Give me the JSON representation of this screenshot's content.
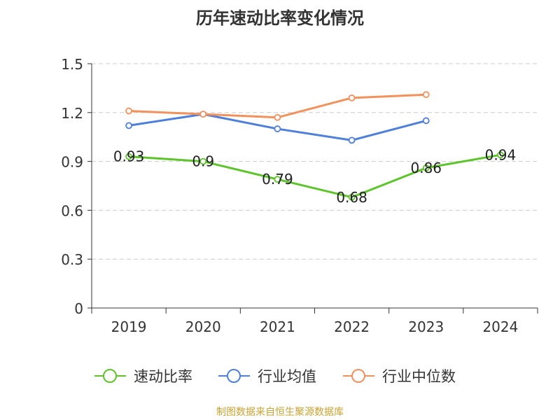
{
  "chart_data": {
    "type": "line",
    "title": "历年速动比率变化情况",
    "categories": [
      "2019",
      "2020",
      "2021",
      "2022",
      "2023",
      "2024"
    ],
    "y_ticks": [
      "0",
      "0.3",
      "0.6",
      "0.9",
      "1.2",
      "1.5"
    ],
    "ylim": [
      0,
      1.5
    ],
    "grid": true,
    "legend_position": "bottom",
    "series": [
      {
        "name": "速动比率",
        "color": "#5ec42b",
        "show_labels": true,
        "values": [
          0.93,
          0.9,
          0.79,
          0.68,
          0.86,
          0.94
        ],
        "labels": [
          "0.93",
          "0.9",
          "0.79",
          "0.68",
          "0.86",
          "0.94"
        ]
      },
      {
        "name": "行业均值",
        "color": "#4e7fda",
        "show_labels": false,
        "values": [
          1.12,
          1.19,
          1.1,
          1.03,
          1.15,
          null
        ]
      },
      {
        "name": "行业中位数",
        "color": "#f2915c",
        "show_labels": false,
        "values": [
          1.21,
          1.19,
          1.17,
          1.29,
          1.31,
          null
        ]
      }
    ]
  },
  "footer": {
    "source": "制图数据来自恒生聚源数据库"
  }
}
